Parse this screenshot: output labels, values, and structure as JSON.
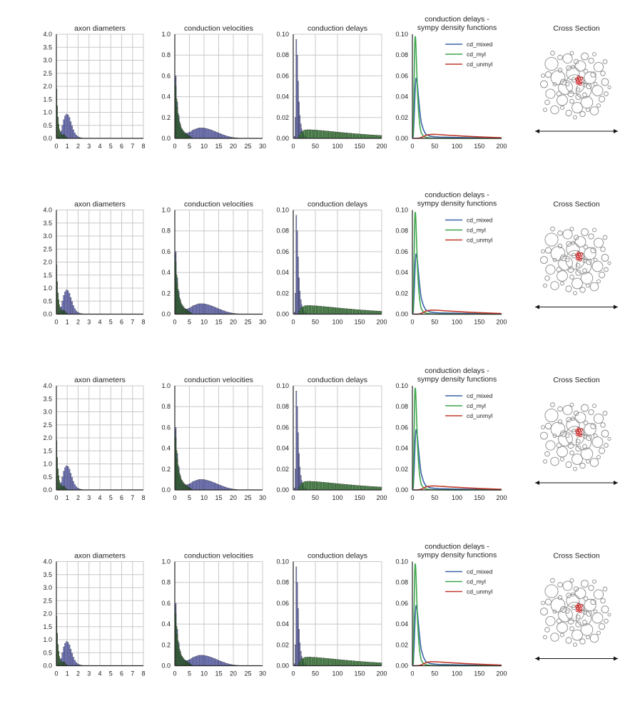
{
  "figure_rows": 4,
  "colors": {
    "bar_mixed": "#5a5fb8",
    "bar_myl": "#3b7a3a",
    "grid": "#c8c8c8",
    "axis": "#222222",
    "cd_mixed": "#3a64a8",
    "cd_myl": "#3da54a",
    "cd_unmyl": "#c0392b",
    "circle": "#8a8a8a",
    "highlight": "#d02020"
  },
  "chart_data": [
    {
      "panel": "axon_diameters",
      "type": "bar",
      "title": "axon diameters",
      "xlim": [
        0,
        8
      ],
      "ylim": [
        0,
        4.0
      ],
      "xticks": [
        "0",
        "1",
        "2",
        "3",
        "4",
        "5",
        "6",
        "7",
        "8"
      ],
      "yticks": [
        "0.0",
        "0.5",
        "1.0",
        "1.5",
        "2.0",
        "2.5",
        "3.0",
        "3.5",
        "4.0"
      ],
      "grid": true,
      "series": [
        {
          "name": "",
          "color_key": "bar_mixed",
          "bin_width": 0.125,
          "x": [
            0.0625,
            0.1875,
            0.3125,
            0.4375,
            0.5625,
            0.6875,
            0.8125,
            0.9375,
            1.0625,
            1.1875,
            1.3125,
            1.4375,
            1.5625,
            1.6875,
            1.8125,
            1.9375,
            2.0625,
            2.1875,
            2.3125,
            2.4375,
            2.5625
          ],
          "values": [
            0.02,
            0.05,
            0.12,
            0.28,
            0.5,
            0.72,
            0.86,
            0.93,
            0.9,
            0.8,
            0.64,
            0.48,
            0.33,
            0.21,
            0.13,
            0.08,
            0.05,
            0.03,
            0.02,
            0.01,
            0.005
          ]
        },
        {
          "name": "",
          "color_key": "bar_myl",
          "bin_width": 0.0625,
          "x": [
            0.03,
            0.09,
            0.16,
            0.22,
            0.28,
            0.34,
            0.41,
            0.47,
            0.53,
            0.59,
            0.66,
            0.72,
            0.78,
            0.84,
            0.91,
            0.97,
            1.03
          ],
          "values": [
            1.9,
            1.25,
            0.82,
            0.55,
            0.36,
            0.26,
            0.2,
            0.16,
            0.14,
            0.13,
            0.14,
            0.15,
            0.12,
            0.08,
            0.05,
            0.03,
            0.01
          ]
        }
      ]
    },
    {
      "panel": "conduction_velocities",
      "type": "bar",
      "title": "conduction velocities",
      "xlim": [
        0,
        30
      ],
      "ylim": [
        0,
        1.0
      ],
      "xticks": [
        "0",
        "5",
        "10",
        "15",
        "20",
        "25",
        "30"
      ],
      "yticks": [
        "0.0",
        "0.2",
        "0.4",
        "0.6",
        "0.8",
        "1.0"
      ],
      "grid": true,
      "series": [
        {
          "name": "",
          "color_key": "bar_mixed",
          "bin_width": 0.5,
          "x": [
            0.25,
            0.75,
            1.25,
            1.75,
            2.25,
            2.75,
            3.25,
            3.75,
            4.25,
            4.75,
            5.25,
            5.75,
            6.25,
            6.75,
            7.25,
            7.75,
            8.25,
            8.75,
            9.25,
            9.75,
            10.25,
            10.75,
            11.25,
            11.75,
            12.25,
            12.75,
            13.25,
            13.75,
            14.25,
            14.75,
            15.25,
            15.75,
            16.25,
            16.75,
            17.25,
            17.75,
            18.25,
            18.75,
            19.25,
            19.75,
            20.25,
            20.75,
            21.25,
            21.75,
            22.25,
            22.75,
            23.25,
            23.75
          ],
          "values": [
            0.6,
            0.35,
            0.22,
            0.14,
            0.09,
            0.06,
            0.05,
            0.05,
            0.05,
            0.055,
            0.06,
            0.07,
            0.08,
            0.085,
            0.09,
            0.095,
            0.1,
            0.1,
            0.1,
            0.1,
            0.097,
            0.095,
            0.09,
            0.087,
            0.082,
            0.077,
            0.072,
            0.066,
            0.06,
            0.054,
            0.048,
            0.043,
            0.037,
            0.032,
            0.027,
            0.022,
            0.018,
            0.015,
            0.012,
            0.009,
            0.007,
            0.005,
            0.004,
            0.003,
            0.002,
            0.002,
            0.001,
            0.001
          ]
        },
        {
          "name": "",
          "color_key": "bar_myl",
          "bin_width": 0.25,
          "x": [
            0.125,
            0.375,
            0.625,
            0.875,
            1.125,
            1.375,
            1.625,
            1.875,
            2.125,
            2.375,
            2.625,
            2.875,
            3.125,
            3.375,
            3.625,
            3.875,
            4.125,
            4.375,
            4.625,
            4.875,
            5.125,
            5.375,
            5.625,
            5.875
          ],
          "values": [
            0.58,
            0.5,
            0.38,
            0.3,
            0.24,
            0.19,
            0.16,
            0.13,
            0.11,
            0.095,
            0.085,
            0.075,
            0.065,
            0.058,
            0.05,
            0.045,
            0.04,
            0.035,
            0.03,
            0.025,
            0.02,
            0.015,
            0.01,
            0.005
          ]
        }
      ]
    },
    {
      "panel": "conduction_delays",
      "type": "bar",
      "title": "conduction delays",
      "xlim": [
        0,
        200
      ],
      "ylim": [
        0,
        0.1
      ],
      "xticks": [
        "0",
        "50",
        "100",
        "150",
        "200"
      ],
      "yticks": [
        "0.00",
        "0.02",
        "0.04",
        "0.06",
        "0.08",
        "0.10"
      ],
      "grid": true,
      "series": [
        {
          "name": "",
          "color_key": "bar_mixed",
          "bin_width": 2,
          "x": [
            1,
            3,
            5,
            7,
            9,
            11,
            13,
            15,
            17,
            19,
            21,
            23,
            25,
            27,
            29
          ],
          "values": [
            0.0,
            0.002,
            0.02,
            0.095,
            0.08,
            0.055,
            0.035,
            0.022,
            0.014,
            0.009,
            0.006,
            0.004,
            0.003,
            0.002,
            0.001
          ]
        },
        {
          "name": "",
          "color_key": "bar_myl",
          "bin_width": 4,
          "x": [
            14,
            18,
            22,
            26,
            30,
            34,
            38,
            42,
            46,
            50,
            54,
            58,
            62,
            66,
            70,
            74,
            78,
            82,
            86,
            90,
            94,
            98,
            102,
            106,
            110,
            114,
            118,
            122,
            126,
            130,
            134,
            138,
            142,
            146,
            150,
            154,
            158,
            162,
            166,
            170,
            174,
            178,
            182,
            186,
            190,
            194,
            198
          ],
          "values": [
            0.003,
            0.006,
            0.007,
            0.008,
            0.0082,
            0.0083,
            0.0083,
            0.0082,
            0.0081,
            0.008,
            0.0079,
            0.0077,
            0.0076,
            0.0074,
            0.0073,
            0.0071,
            0.007,
            0.0068,
            0.0066,
            0.0065,
            0.0063,
            0.0061,
            0.006,
            0.0058,
            0.0056,
            0.0055,
            0.0053,
            0.0052,
            0.005,
            0.0049,
            0.0047,
            0.0046,
            0.0044,
            0.0043,
            0.0042,
            0.004,
            0.0039,
            0.0038,
            0.0037,
            0.0035,
            0.0034,
            0.0033,
            0.0032,
            0.0031,
            0.003,
            0.0029,
            0.0028
          ]
        }
      ]
    },
    {
      "panel": "sympy_density_functions",
      "type": "line",
      "title": [
        "conduction delays -",
        "sympy density functions"
      ],
      "xlim": [
        0,
        200
      ],
      "ylim": [
        0,
        0.1
      ],
      "xticks": [
        "0",
        "50",
        "100",
        "150",
        "200"
      ],
      "yticks": [
        "0.00",
        "0.02",
        "0.04",
        "0.06",
        "0.08",
        "0.10"
      ],
      "grid": false,
      "legend": "top-right",
      "series": [
        {
          "name": "cd_mixed",
          "color_key": "cd_mixed",
          "x": [
            0,
            2,
            4,
            6,
            8,
            10,
            12,
            14,
            16,
            18,
            20,
            25,
            30,
            35,
            40,
            50,
            60,
            80,
            100,
            150,
            200
          ],
          "values": [
            0,
            0.002,
            0.02,
            0.045,
            0.058,
            0.056,
            0.048,
            0.038,
            0.029,
            0.021,
            0.015,
            0.008,
            0.004,
            0.003,
            0.002,
            0.0015,
            0.0012,
            0.001,
            0.0008,
            0.0005,
            0.0003
          ]
        },
        {
          "name": "cd_myl",
          "color_key": "cd_myl",
          "x": [
            0,
            2,
            4,
            5,
            6,
            7,
            8,
            9,
            10,
            12,
            14,
            16,
            18,
            20,
            25,
            30,
            40,
            50,
            100,
            200
          ],
          "values": [
            0,
            0.005,
            0.06,
            0.085,
            0.098,
            0.097,
            0.088,
            0.075,
            0.062,
            0.04,
            0.025,
            0.015,
            0.009,
            0.005,
            0.002,
            0.001,
            0.0003,
            0.0001,
            0,
            0
          ]
        },
        {
          "name": "cd_unmyl",
          "color_key": "cd_unmyl",
          "x": [
            0,
            5,
            10,
            15,
            20,
            25,
            30,
            35,
            40,
            45,
            50,
            60,
            70,
            80,
            100,
            120,
            150,
            180,
            200
          ],
          "values": [
            0,
            0,
            0,
            0.0002,
            0.0008,
            0.0018,
            0.0028,
            0.0034,
            0.0037,
            0.0038,
            0.0038,
            0.0036,
            0.0033,
            0.003,
            0.0025,
            0.002,
            0.0014,
            0.0009,
            0.0006
          ]
        }
      ]
    }
  ],
  "cross_section": {
    "title": "Cross Section",
    "circles": [
      [
        0.0,
        0.0,
        1.6
      ],
      [
        -0.9,
        0.3,
        1.2
      ],
      [
        0.8,
        0.6,
        1.3
      ],
      [
        -0.2,
        -1.0,
        1.1
      ],
      [
        1.4,
        -0.6,
        1.0
      ],
      [
        -1.6,
        -0.6,
        1.2
      ],
      [
        0.5,
        -1.7,
        0.9
      ],
      [
        -1.2,
        1.5,
        0.9
      ],
      [
        1.1,
        1.7,
        1.0
      ],
      [
        2.1,
        0.6,
        0.9
      ],
      [
        -2.3,
        0.9,
        0.8
      ],
      [
        -2.2,
        -1.9,
        1.1
      ],
      [
        2.2,
        -1.6,
        0.8
      ],
      [
        0.2,
        2.2,
        0.9
      ],
      [
        -0.7,
        -2.4,
        0.8
      ],
      [
        1.8,
        2.5,
        0.7
      ],
      [
        -1.9,
        2.4,
        0.7
      ],
      [
        2.8,
        -0.2,
        0.6
      ],
      [
        -2.9,
        0.0,
        0.6
      ],
      [
        0.9,
        -2.6,
        0.6
      ],
      [
        -0.4,
        0.9,
        0.5
      ],
      [
        0.6,
        -0.4,
        0.5
      ],
      [
        -1.1,
        -0.2,
        0.5
      ],
      [
        1.3,
        0.2,
        0.45
      ],
      [
        -0.1,
        -0.4,
        0.4
      ],
      [
        0.3,
        1.2,
        0.45
      ],
      [
        -1.5,
        0.9,
        0.4
      ],
      [
        1.7,
        -0.9,
        0.45
      ],
      [
        -0.6,
        -1.5,
        0.4
      ],
      [
        0.9,
        1.0,
        0.35
      ],
      [
        -2.5,
        -0.9,
        0.5
      ],
      [
        2.5,
        1.4,
        0.5
      ],
      [
        -1.4,
        -1.3,
        0.35
      ],
      [
        1.0,
        -1.2,
        0.35
      ],
      [
        -0.3,
        1.6,
        0.35
      ],
      [
        0.1,
        -2.1,
        0.4
      ],
      [
        2.6,
        -1.0,
        0.4
      ],
      [
        -2.6,
        1.7,
        0.4
      ],
      [
        1.5,
        -2.2,
        0.45
      ],
      [
        -1.4,
        -2.5,
        0.4
      ],
      [
        0.7,
        2.8,
        0.45
      ],
      [
        -0.6,
        2.7,
        0.5
      ],
      [
        2.9,
        0.9,
        0.35
      ],
      [
        -3.0,
        -0.8,
        0.3
      ],
      [
        0.3,
        0.5,
        0.3
      ],
      [
        -0.7,
        0.0,
        0.3
      ],
      [
        0.9,
        0.1,
        0.3
      ],
      [
        -0.2,
        -1.6,
        0.3
      ],
      [
        1.9,
        0.0,
        0.3
      ],
      [
        -1.9,
        0.0,
        0.3
      ],
      [
        2.2,
        2.0,
        0.3
      ],
      [
        -2.1,
        -2.9,
        0.35
      ],
      [
        2.8,
        -2.1,
        0.35
      ],
      [
        -2.8,
        2.4,
        0.3
      ],
      [
        0.0,
        3.1,
        0.3
      ],
      [
        1.2,
        2.4,
        0.3
      ],
      [
        -1.2,
        2.2,
        0.3
      ],
      [
        -0.3,
        -2.9,
        0.3
      ],
      [
        1.8,
        -2.8,
        0.3
      ],
      [
        3.2,
        0.3,
        0.25
      ]
    ],
    "highlight_points": [
      [
        0.25,
        0.3
      ],
      [
        0.35,
        0.15
      ],
      [
        0.15,
        0.45
      ],
      [
        0.4,
        0.5
      ],
      [
        0.55,
        0.25
      ],
      [
        0.3,
        0.65
      ],
      [
        0.5,
        0.0
      ],
      [
        0.2,
        0.1
      ],
      [
        0.6,
        0.55
      ]
    ]
  }
}
